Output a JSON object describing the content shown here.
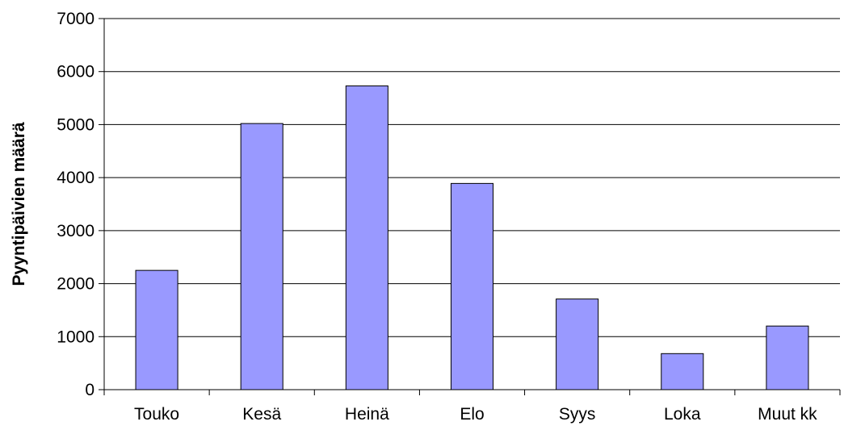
{
  "chart_data": {
    "type": "bar",
    "title": "",
    "xlabel": "",
    "ylabel": "Pyyntipäivien määrä",
    "categories": [
      "Touko",
      "Kesä",
      "Heinä",
      "Elo",
      "Syys",
      "Loka",
      "Muut kk"
    ],
    "values": [
      2250,
      5020,
      5730,
      3890,
      1710,
      680,
      1200
    ],
    "ylim": [
      0,
      7000
    ],
    "yticks": [
      0,
      1000,
      2000,
      3000,
      4000,
      5000,
      6000,
      7000
    ],
    "grid": true,
    "legend": "none",
    "bar_color": "#9999ff",
    "bar_edge_color": "#000000"
  }
}
